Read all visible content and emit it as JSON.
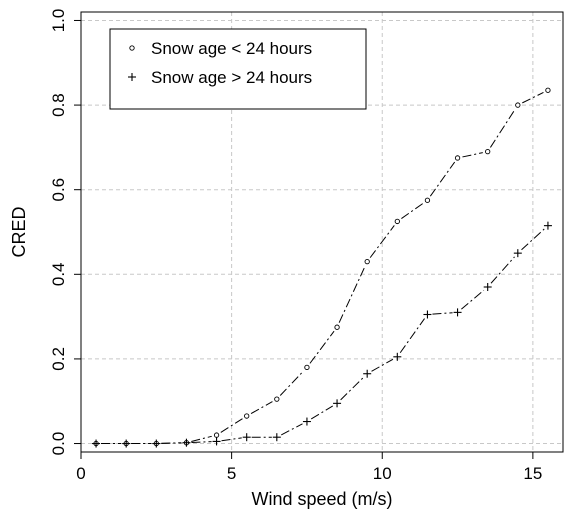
{
  "chart_data": {
    "type": "line",
    "title": "",
    "xlabel": "Wind speed (m/s)",
    "ylabel": "CRED",
    "xlim": [
      0,
      16
    ],
    "ylim": [
      -0.02,
      1.02
    ],
    "x_ticks": [
      0,
      5,
      10,
      15
    ],
    "y_ticks": [
      0.0,
      0.2,
      0.4,
      0.6,
      0.8,
      1.0
    ],
    "x_tick_labels": [
      "0",
      "5",
      "10",
      "15"
    ],
    "y_tick_labels": [
      "0.0",
      "0.2",
      "0.4",
      "0.6",
      "0.8",
      "1.0"
    ],
    "grid": true,
    "legend_position": "top-left",
    "series": [
      {
        "name": "Snow age < 24 hours",
        "marker": "circle",
        "x": [
          0.5,
          1.5,
          2.5,
          3.5,
          4.5,
          5.5,
          6.5,
          7.5,
          8.5,
          9.5,
          10.5,
          11.5,
          12.5,
          13.5,
          14.5,
          15.5
        ],
        "y": [
          0.0,
          0.0,
          0.0,
          0.002,
          0.02,
          0.065,
          0.105,
          0.18,
          0.275,
          0.43,
          0.525,
          0.575,
          0.675,
          0.69,
          0.8,
          0.835
        ]
      },
      {
        "name": "Snow age > 24 hours",
        "marker": "plus",
        "x": [
          0.5,
          1.5,
          2.5,
          3.5,
          4.5,
          5.5,
          6.5,
          7.5,
          8.5,
          9.5,
          10.5,
          11.5,
          12.5,
          13.5,
          14.5,
          15.5
        ],
        "y": [
          0.0,
          0.0,
          0.0,
          0.002,
          0.005,
          0.015,
          0.015,
          0.052,
          0.095,
          0.165,
          0.205,
          0.305,
          0.31,
          0.37,
          0.45,
          0.515
        ]
      }
    ],
    "colors": {
      "line": "#000000",
      "grid": "#c8c8c8",
      "frame": "#000000"
    }
  }
}
